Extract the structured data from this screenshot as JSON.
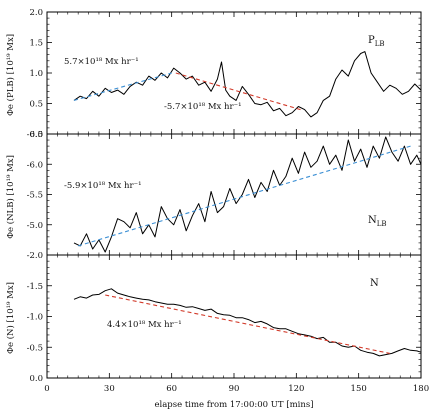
{
  "chart_data": {
    "type": "line",
    "shared_x": {
      "label": "elapse time from 17:00:00 UT [mins]",
      "lim": [
        0,
        180
      ],
      "ticks": [
        0,
        30,
        60,
        90,
        120,
        150,
        180
      ],
      "tick_labels": [
        "0",
        "30",
        "60",
        "90",
        "120",
        "150",
        "180"
      ]
    },
    "panels": [
      {
        "panel_label_main": "P",
        "panel_label_sub": "LB",
        "ylabel": "Φe (PLB) [10¹⁹ Mx]",
        "ylim": [
          0,
          2.0
        ],
        "inverted": false,
        "yticks": [
          0,
          0.5,
          1.0,
          1.5,
          2.0
        ],
        "ytick_labels": [
          "0.0",
          "0.5",
          "1.0",
          "1.5",
          "2.0"
        ],
        "series": [
          {
            "style": "solid",
            "color": "#000000",
            "x": [
              13,
              16,
              19,
              22,
              25,
              28,
              31,
              34,
              37,
              40,
              43,
              46,
              49,
              52,
              55,
              58,
              61,
              64,
              67,
              70,
              73,
              76,
              79,
              82,
              84,
              86,
              88,
              91,
              94,
              97,
              100,
              103,
              106,
              109,
              112,
              115,
              118,
              121,
              124,
              127,
              130,
              133,
              136,
              139,
              142,
              145,
              148,
              151,
              153,
              156,
              159,
              162,
              165,
              168,
              171,
              174,
              177,
              180
            ],
            "y": [
              0.55,
              0.62,
              0.58,
              0.7,
              0.62,
              0.75,
              0.68,
              0.72,
              0.65,
              0.78,
              0.85,
              0.8,
              0.95,
              0.88,
              1.0,
              0.92,
              1.08,
              1.0,
              0.9,
              0.95,
              0.8,
              0.85,
              0.7,
              0.9,
              1.18,
              0.72,
              0.62,
              0.55,
              0.78,
              0.65,
              0.5,
              0.48,
              0.52,
              0.38,
              0.42,
              0.3,
              0.35,
              0.45,
              0.4,
              0.28,
              0.35,
              0.55,
              0.62,
              0.9,
              1.05,
              0.95,
              1.2,
              1.32,
              1.35,
              1.0,
              0.85,
              0.7,
              0.8,
              0.75,
              0.65,
              0.7,
              0.82,
              0.72
            ]
          },
          {
            "style": "dashed",
            "color": "#3b8fd4",
            "x": [
              13,
              60
            ],
            "y": [
              0.55,
              1.0
            ]
          },
          {
            "style": "dashed",
            "color": "#d23a2a",
            "x": [
              62,
              122
            ],
            "y": [
              1.0,
              0.4
            ]
          }
        ],
        "annotations": [
          {
            "text": "5.7×10¹⁸ Mx hr⁻¹"
          },
          {
            "text": "-5.7×10¹⁸ Mx hr⁻¹"
          }
        ]
      },
      {
        "panel_label_main": "N",
        "panel_label_sub": "LB",
        "ylabel": "Φe (NLB) [10¹⁹ Mx]",
        "ylim": [
          -4.5,
          -6.5
        ],
        "inverted": true,
        "yticks": [
          -4.5,
          -5.0,
          -5.5,
          -6.0,
          -6.5
        ],
        "ytick_labels": [
          "",
          "-5.0",
          "-5.5",
          "-6.0",
          "-6.5"
        ],
        "series": [
          {
            "style": "solid",
            "color": "#000000",
            "x": [
              13,
              16,
              19,
              22,
              25,
              28,
              31,
              34,
              37,
              40,
              43,
              46,
              49,
              52,
              55,
              58,
              61,
              64,
              67,
              70,
              73,
              76,
              79,
              82,
              85,
              88,
              91,
              94,
              97,
              100,
              103,
              106,
              109,
              112,
              115,
              118,
              121,
              124,
              127,
              130,
              133,
              136,
              139,
              142,
              145,
              148,
              151,
              154,
              157,
              160,
              163,
              166,
              169,
              172,
              175,
              178,
              180
            ],
            "y": [
              -4.7,
              -4.65,
              -4.85,
              -4.6,
              -4.75,
              -4.55,
              -4.8,
              -5.1,
              -5.05,
              -4.95,
              -5.2,
              -4.85,
              -5.0,
              -4.8,
              -5.3,
              -5.1,
              -5.0,
              -5.25,
              -4.9,
              -5.15,
              -5.35,
              -5.05,
              -5.55,
              -5.2,
              -5.3,
              -5.6,
              -5.35,
              -5.5,
              -5.75,
              -5.45,
              -5.7,
              -5.55,
              -5.9,
              -5.65,
              -5.8,
              -6.1,
              -5.85,
              -6.2,
              -5.95,
              -6.05,
              -6.3,
              -6.0,
              -6.15,
              -5.9,
              -6.4,
              -6.05,
              -6.25,
              -5.95,
              -6.3,
              -6.1,
              -6.45,
              -6.2,
              -6.05,
              -6.3,
              -6.0,
              -6.15,
              -6.0
            ]
          },
          {
            "style": "dashed",
            "color": "#3b8fd4",
            "x": [
              15,
              175
            ],
            "y": [
              -4.65,
              -6.3
            ]
          }
        ],
        "annotations": [
          {
            "text": "-5.9×10¹⁸ Mx hr⁻¹"
          }
        ]
      },
      {
        "panel_label_main": "N",
        "panel_label_sub": "",
        "ylabel": "Φe (N) [10¹⁹ Mx]",
        "ylim": [
          0,
          -2.0
        ],
        "inverted": true,
        "yticks": [
          0,
          -0.5,
          -1.0,
          -1.5,
          -2.0
        ],
        "ytick_labels": [
          "0.0",
          "-0.5",
          "-1.0",
          "-1.5",
          "-2.0"
        ],
        "series": [
          {
            "style": "solid",
            "color": "#000000",
            "x": [
              13,
              16,
              19,
              22,
              25,
              28,
              31,
              34,
              37,
              40,
              43,
              46,
              49,
              52,
              55,
              58,
              61,
              64,
              67,
              70,
              73,
              76,
              79,
              82,
              85,
              88,
              91,
              94,
              97,
              100,
              103,
              106,
              109,
              112,
              115,
              118,
              121,
              124,
              127,
              130,
              133,
              136,
              139,
              142,
              145,
              148,
              151,
              154,
              157,
              160,
              163,
              166,
              169,
              172,
              175,
              178,
              180
            ],
            "y": [
              -1.28,
              -1.32,
              -1.3,
              -1.35,
              -1.36,
              -1.42,
              -1.45,
              -1.38,
              -1.35,
              -1.32,
              -1.3,
              -1.28,
              -1.27,
              -1.24,
              -1.22,
              -1.2,
              -1.2,
              -1.18,
              -1.15,
              -1.16,
              -1.13,
              -1.1,
              -1.12,
              -1.05,
              -1.03,
              -1.02,
              -0.98,
              -0.98,
              -0.95,
              -0.9,
              -0.92,
              -0.88,
              -0.82,
              -0.8,
              -0.8,
              -0.76,
              -0.72,
              -0.7,
              -0.68,
              -0.64,
              -0.66,
              -0.58,
              -0.58,
              -0.52,
              -0.5,
              -0.52,
              -0.45,
              -0.42,
              -0.4,
              -0.36,
              -0.38,
              -0.4,
              -0.44,
              -0.48,
              -0.45,
              -0.44,
              -0.42
            ]
          },
          {
            "style": "dashed",
            "color": "#d23a2a",
            "x": [
              28,
              165
            ],
            "y": [
              -1.35,
              -0.4
            ]
          }
        ],
        "annotations": [
          {
            "text": "4.4×10¹⁸ Mx hr⁻¹"
          }
        ]
      }
    ]
  }
}
